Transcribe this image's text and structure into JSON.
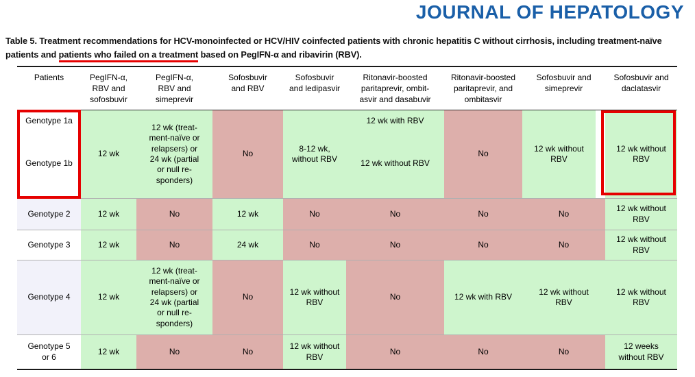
{
  "journal_title": "JOURNAL OF HEPATOLOGY",
  "caption": {
    "line1": "Table 5. Treatment recommendations for HCV-monoinfected or HCV/HIV coinfected patients with chronic hepatitis C without cirrhosis, including treatment-naïve",
    "line2_prefix": "patients and ",
    "line2_underlined": "patients who failed on a treatment",
    "line2_suffix": " based on PegIFN-α and ribavirin (RBV)."
  },
  "colors": {
    "recommended_green": "#cef5cd",
    "not_recommended_pink": "#ddafab",
    "annotation_red": "#e60000",
    "title_blue": "#1a5fa8",
    "alt_row_lavender": "#f2f2fa"
  },
  "table": {
    "headers": [
      "Patients",
      "PegIFN-α,\nRBV and\nsofosbuvir",
      "PegIFN-α,\nRBV and\nsimeprevir",
      "Sofosbuvir\nand RBV",
      "Sofosbuvir\nand ledipasvir",
      "Ritonavir-boosted\nparitaprevir, ombit-\nasvir and dasabuvir",
      "Ritonavir-boosted\nparitaprevir, and\nombitasvir",
      "Sofosbuvir and\nsimeprevir",
      "Sofosbuvir and\ndaclatasvir"
    ],
    "rows": [
      {
        "patient_lines": [
          "Genotype 1a",
          "Genotype 1b"
        ],
        "cells": [
          {
            "t": "12 wk",
            "s": "yes"
          },
          {
            "t": "12 wk (treat-\nment-naïve or\nrelapsers) or\n24 wk (partial\nor null re-\nsponders)",
            "s": "yes"
          },
          {
            "t": "No",
            "s": "no"
          },
          {
            "t": "8-12 wk,\nwithout RBV",
            "s": "yes"
          },
          {
            "t1": "12 wk with RBV",
            "t2": "12 wk without RBV",
            "s": "yes"
          },
          {
            "t": "No",
            "s": "no"
          },
          {
            "t": "12 wk without\nRBV",
            "s": "yes"
          },
          {
            "t": "12 wk without\nRBV",
            "s": "yes",
            "highlighted": true
          }
        ]
      },
      {
        "patient": "Genotype 2",
        "cells": [
          {
            "t": "12 wk",
            "s": "yes"
          },
          {
            "t": "No",
            "s": "no"
          },
          {
            "t": "12 wk",
            "s": "yes"
          },
          {
            "t": "No",
            "s": "no"
          },
          {
            "t": "No",
            "s": "no"
          },
          {
            "t": "No",
            "s": "no"
          },
          {
            "t": "No",
            "s": "no"
          },
          {
            "t": "12 wk without\nRBV",
            "s": "yes"
          }
        ]
      },
      {
        "patient": "Genotype 3",
        "cells": [
          {
            "t": "12 wk",
            "s": "yes"
          },
          {
            "t": "No",
            "s": "no"
          },
          {
            "t": "24 wk",
            "s": "yes"
          },
          {
            "t": "No",
            "s": "no"
          },
          {
            "t": "No",
            "s": "no"
          },
          {
            "t": "No",
            "s": "no"
          },
          {
            "t": "No",
            "s": "no"
          },
          {
            "t": "12 wk without\nRBV",
            "s": "yes"
          }
        ]
      },
      {
        "patient": "Genotype 4",
        "cells": [
          {
            "t": "12 wk",
            "s": "yes"
          },
          {
            "t": "12 wk (treat-\nment-naïve or\nrelapsers) or\n24 wk (partial\nor null re-\nsponders)",
            "s": "yes"
          },
          {
            "t": "No",
            "s": "no"
          },
          {
            "t": "12 wk without\nRBV",
            "s": "yes"
          },
          {
            "t": "No",
            "s": "no"
          },
          {
            "t": "12 wk with RBV",
            "s": "yes"
          },
          {
            "t": "12 wk without\nRBV",
            "s": "yes"
          },
          {
            "t": "12 wk without\nRBV",
            "s": "yes"
          }
        ]
      },
      {
        "patient": "Genotype 5\nor 6",
        "cells": [
          {
            "t": "12 wk",
            "s": "yes"
          },
          {
            "t": "No",
            "s": "no"
          },
          {
            "t": "No",
            "s": "no"
          },
          {
            "t": "12 wk without\nRBV",
            "s": "yes"
          },
          {
            "t": "No",
            "s": "no"
          },
          {
            "t": "No",
            "s": "no"
          },
          {
            "t": "No",
            "s": "no"
          },
          {
            "t": "12 weeks\nwithout RBV",
            "s": "yes"
          }
        ]
      }
    ]
  }
}
